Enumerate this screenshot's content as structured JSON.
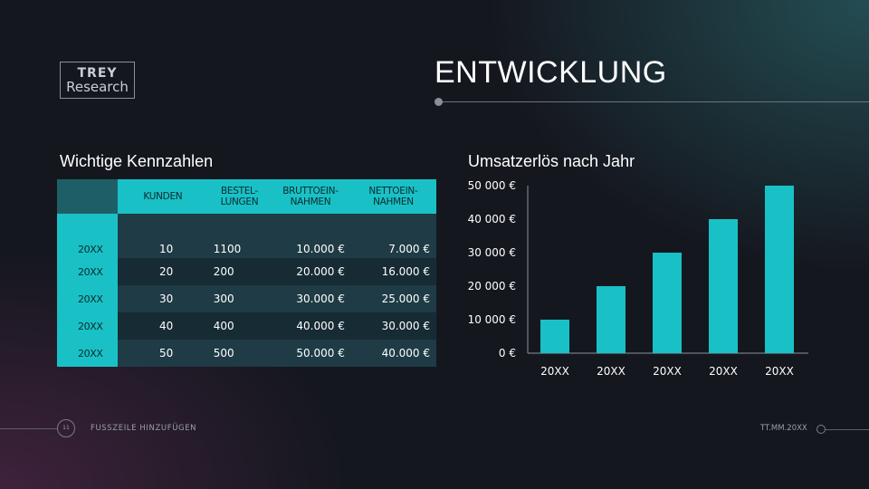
{
  "logo": {
    "line1": "TREY",
    "line2": "Research"
  },
  "page_title": "ENTWICKLUNG",
  "left_section_title": "Wichtige Kennzahlen",
  "right_section_title": "Umsatzerlös nach Jahr",
  "table": {
    "headers": [
      "KUNDEN",
      "BESTEL-\nLUNGEN",
      "BRUTTOEIN-\nNAHMEN",
      "NETTOEIN-\nNAHMEN"
    ],
    "rows": [
      {
        "year": "20XX",
        "values": [
          "10",
          "1100",
          "10.000 €",
          "7.000 €"
        ]
      },
      {
        "year": "20XX",
        "values": [
          "20",
          "200",
          "20.000 €",
          "16.000 €"
        ]
      },
      {
        "year": "20XX",
        "values": [
          "30",
          "300",
          "30.000 €",
          "25.000 €"
        ]
      },
      {
        "year": "20XX",
        "values": [
          "40",
          "400",
          "40.000 €",
          "30.000 €"
        ]
      },
      {
        "year": "20XX",
        "values": [
          "50",
          "500",
          "50.000 €",
          "40.000 €"
        ]
      }
    ]
  },
  "chart_data": {
    "type": "bar",
    "categories": [
      "20XX",
      "20XX",
      "20XX",
      "20XX",
      "20XX"
    ],
    "values": [
      10000,
      20000,
      30000,
      40000,
      50000
    ],
    "ylim": [
      0,
      50000
    ],
    "yticks": [
      0,
      10000,
      20000,
      30000,
      40000,
      50000
    ],
    "ytick_labels": [
      "0 €",
      "10 000 €",
      "20 000 €",
      "30 000 €",
      "40 000 €",
      "50 000 €"
    ],
    "grid": false,
    "bar_color": "#19c1c6"
  },
  "footer": {
    "page_number": "11",
    "text": "FUSSZEILE HINZUFÜGEN",
    "date": "TT.MM.20XX"
  }
}
